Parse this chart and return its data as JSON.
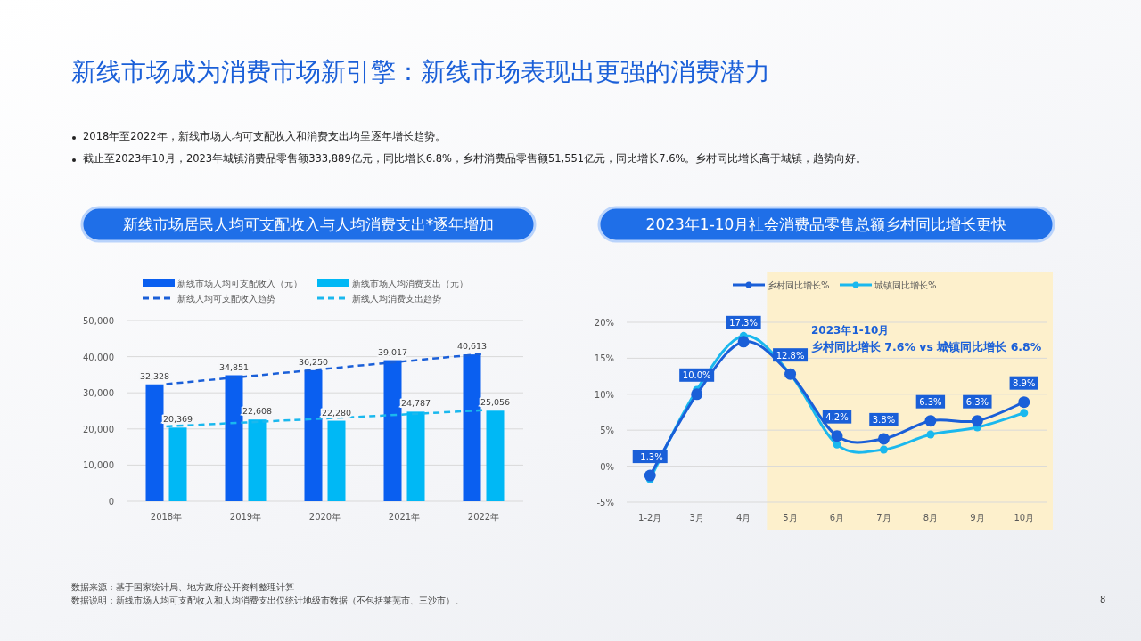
{
  "chart_data": [
    {
      "type": "other",
      "title": "新线市场成为消费市场新引擎：新线市场表现出更强的消费潜力",
      "annotations": [
        "2018年至2022年，新线市场人均可支配收入和消费支出均呈逐年增长趋势。",
        "截止至2023年10月，2023年城镇消费品零售额333,889亿元，同比增长6.8%，乡村消费品零售额51,551亿元，同比增长7.6%。乡村同比增长高于城镇，趋势向好。",
        "数据来源：基于国家统计局、地方政府公开资料整理计算",
        "数据说明：新线市场人均可支配收入和人均消费支出仅统计地级市数据（不包括莱芜市、三沙市）。",
        "8"
      ]
    },
    {
      "type": "bar",
      "title": "新线市场居民人均可支配收入与人均消费支出*逐年增加",
      "categories": [
        "2018年",
        "2019年",
        "2020年",
        "2021年",
        "2022年"
      ],
      "ylim": [
        0,
        50000
      ],
      "yticks": [
        {
          "value": 0,
          "label": "0"
        },
        {
          "value": 10000,
          "label": "10,000"
        },
        {
          "value": 20000,
          "label": "20,000"
        },
        {
          "value": 30000,
          "label": "30,000"
        },
        {
          "value": 40000,
          "label": "40,000"
        },
        {
          "value": 50000,
          "label": "50,000"
        }
      ],
      "grid": "y",
      "legend": "top",
      "series": [
        {
          "name": "新线市场人均可支配收入（元）",
          "color": "#0a5ff0",
          "values": [
            32328,
            34851,
            36250,
            39017,
            40613
          ],
          "value_labels": [
            "32,328",
            "34,851",
            "36,250",
            "39,017",
            "40,613"
          ]
        },
        {
          "name": "新线市场人均消费支出（元）",
          "color": "#00b8f5",
          "values": [
            20369,
            22608,
            22280,
            24787,
            25056
          ],
          "value_labels": [
            "20,369",
            "22,608",
            "22,280",
            "24,787",
            "25,056"
          ]
        },
        {
          "name": "新线人均可支配收入趋势",
          "type": "line",
          "line_style": "dashed",
          "color": "#1a5fd8",
          "values": [
            32400,
            34500,
            36600,
            38700,
            40800
          ]
        },
        {
          "name": "新线人均消费支出趋势",
          "type": "line",
          "line_style": "dashed",
          "color": "#1ab8ee",
          "values": [
            20700,
            21800,
            22900,
            24000,
            25200
          ]
        }
      ]
    },
    {
      "type": "line",
      "title": "2023年1-10月社会消费品零售总额乡村同比增长更快",
      "categories": [
        "1-2月",
        "3月",
        "4月",
        "5月",
        "6月",
        "7月",
        "8月",
        "9月",
        "10月"
      ],
      "ylim": [
        -5,
        20
      ],
      "yticks": [
        {
          "value": -5,
          "label": "-5%"
        },
        {
          "value": 0,
          "label": "0%"
        },
        {
          "value": 5,
          "label": "5%"
        },
        {
          "value": 10,
          "label": "10%"
        },
        {
          "value": 15,
          "label": "15%"
        },
        {
          "value": 20,
          "label": "20%"
        }
      ],
      "grid": "y",
      "legend": "top",
      "marker": "circle",
      "bands": [
        {
          "axis": "x",
          "from": "5月",
          "to": "10月",
          "color": "#fdf0cc"
        }
      ],
      "annotations": [
        "2023年1-10月",
        "乡村同比增长 7.6% vs 城镇同比增长 6.8%"
      ],
      "series": [
        {
          "name": "乡村同比增长%",
          "color": "#1a5fd8",
          "values": [
            -1.3,
            10.0,
            17.3,
            12.8,
            4.2,
            3.8,
            6.3,
            6.3,
            8.9
          ],
          "value_labels": [
            "-1.3%",
            "10.0%",
            "17.3%",
            "12.8%",
            "4.2%",
            "3.8%",
            "6.3%",
            "6.3%",
            "8.9%"
          ]
        },
        {
          "name": "城镇同比增长%",
          "color": "#1ab8ee",
          "values": [
            -1.8,
            10.6,
            18.1,
            12.8,
            3.0,
            2.3,
            4.4,
            5.4,
            7.4
          ]
        }
      ]
    }
  ]
}
